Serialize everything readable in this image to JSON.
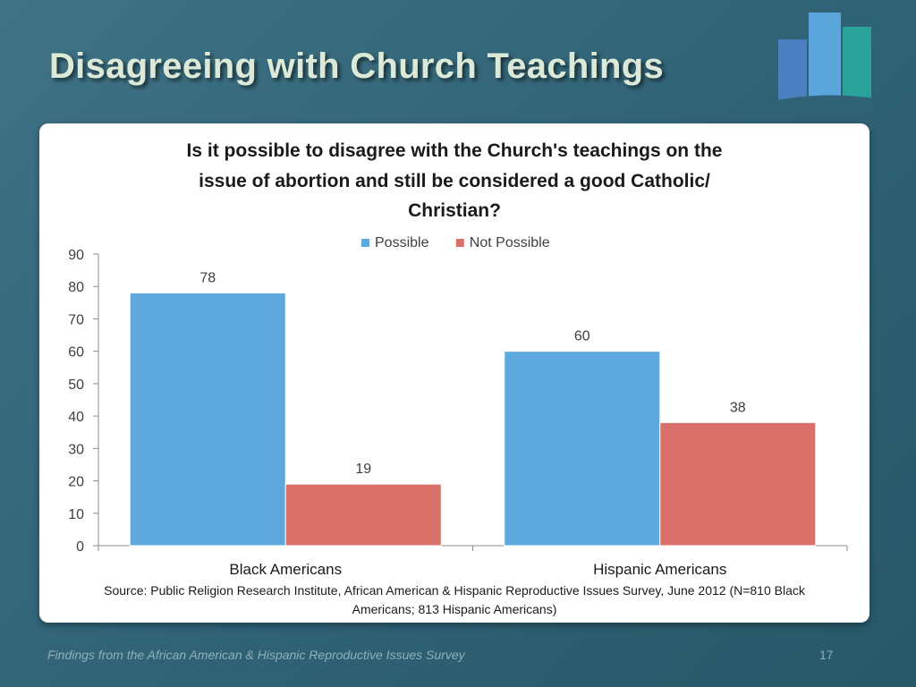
{
  "slide": {
    "title": "Disagreeing with Church Teachings",
    "footer": "Findings from the African American & Hispanic Reproductive Issues Survey",
    "page_number": "17"
  },
  "chart_data": {
    "type": "bar",
    "title_lines": [
      "Is it possible to disagree with the Church's teachings on the",
      "issue of abortion and still be considered a good Catholic/",
      "Christian?"
    ],
    "categories": [
      "Black Americans",
      "Hispanic Americans"
    ],
    "series": [
      {
        "name": "Possible",
        "values": [
          78,
          60
        ],
        "color": "#5da9dd"
      },
      {
        "name": "Not Possible",
        "values": [
          19,
          38
        ],
        "color": "#d9706a"
      }
    ],
    "ylim": [
      0,
      90
    ],
    "yticks": [
      0,
      10,
      20,
      30,
      40,
      50,
      60,
      70,
      80,
      90
    ],
    "legend_position": "top",
    "grid": false,
    "data_labels": true,
    "source": [
      "Source: Public Religion Research Institute, African American & Hispanic Reproductive Issues Survey, June 2012 (N=810 Black",
      "Americans; 813 Hispanic Americans)"
    ]
  }
}
